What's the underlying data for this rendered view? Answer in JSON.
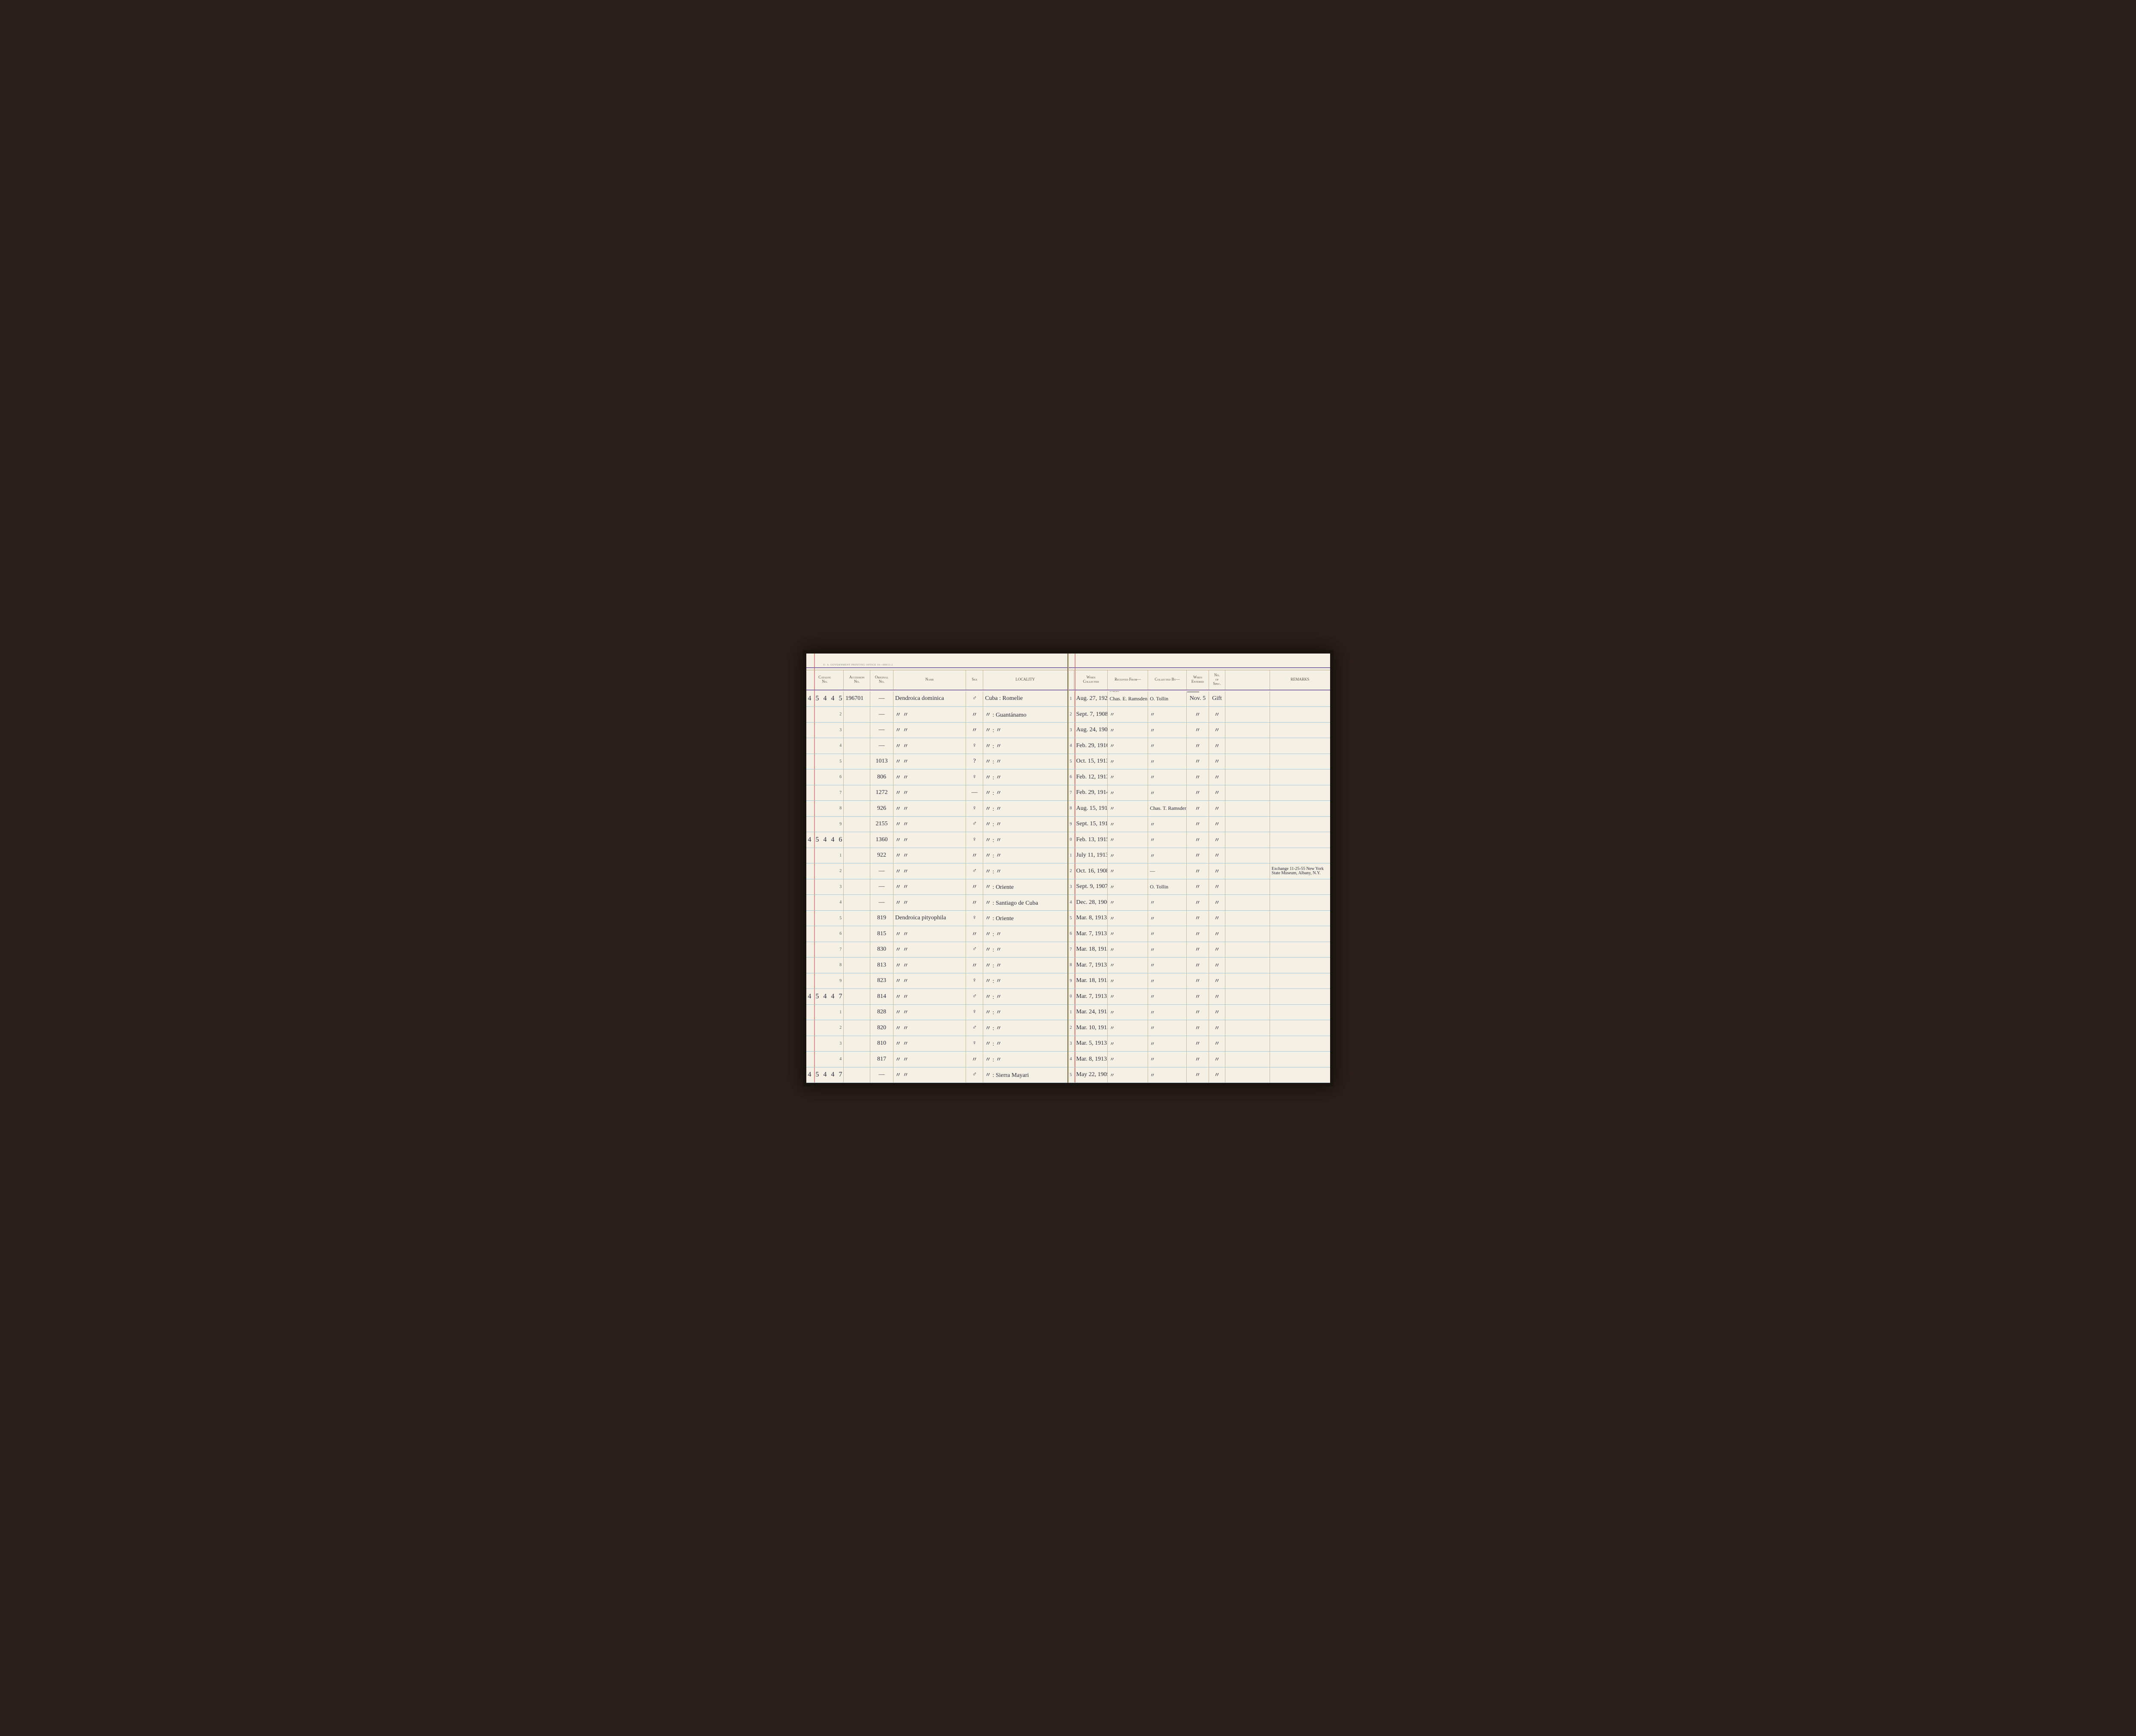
{
  "tiny_print": "U. S. GOVERNMENT PRINTING OFFICE   16—00913-2",
  "colors": {
    "paper": "#f5f0e4",
    "rule_horizontal": "#a8c8d8",
    "rule_vertical": "#c8b8a0",
    "margin": "#d89090",
    "purple_rule": "#8a6fa8",
    "ink": "#2a2a3a",
    "printed_text": "#5a4a3a"
  },
  "columns_left": [
    {
      "key": "catalog",
      "label": "Catalog\nNo.",
      "width": 88
    },
    {
      "key": "accession",
      "label": "Accession\nNo.",
      "width": 62
    },
    {
      "key": "original",
      "label": "Original\nNo.",
      "width": 54
    },
    {
      "key": "name",
      "label": "Name",
      "width": 170
    },
    {
      "key": "sex",
      "label": "Sex",
      "width": 40
    },
    {
      "key": "locality",
      "label": "LOCALITY",
      "width": 196
    }
  ],
  "columns_right": [
    {
      "key": "rownum",
      "label": "",
      "width": 14
    },
    {
      "key": "when_collected",
      "label": "When\nCollected",
      "width": 78
    },
    {
      "key": "received_from",
      "label": "Received From—",
      "width": 94
    },
    {
      "key": "collected_by",
      "label": "Collected By—",
      "width": 90
    },
    {
      "key": "when_entered",
      "label": "When\nEntered",
      "width": 52
    },
    {
      "key": "no_spec",
      "label": "No.\nof\nSpec.",
      "width": 38
    },
    {
      "key": "blank1",
      "label": "",
      "width": 104
    },
    {
      "key": "remarks",
      "label": "REMARKS",
      "width": 140
    }
  ],
  "above_header": {
    "received_from_year": "Mrs.",
    "when_entered_year": "1953"
  },
  "rows": [
    {
      "n": 1,
      "catalog": "4 5 4 4 5",
      "accession": "196701",
      "original": "—",
      "name": "Dendroica dominica",
      "sex": "♂",
      "locality": "Cuba :  Romelie",
      "when_collected": "Aug. 27, 1921",
      "received_from": "Chas. E. Ramsden",
      "collected_by": "O. Tollin",
      "when_entered": "Nov. 5",
      "no_spec": "Gift",
      "remarks": ""
    },
    {
      "n": 2,
      "catalog": "",
      "accession": "",
      "original": "—",
      "name": "〃          〃",
      "sex": "〃",
      "locality": "〃   : Guantánamo",
      "when_collected": "Sept. 7, 1908",
      "received_from": "〃",
      "collected_by": "〃",
      "when_entered": "〃",
      "no_spec": "〃",
      "remarks": ""
    },
    {
      "n": 3,
      "catalog": "",
      "accession": "",
      "original": "—",
      "name": "〃          〃",
      "sex": "〃",
      "locality": "〃   :     〃",
      "when_collected": "Aug. 24, 1908",
      "received_from": "〃",
      "collected_by": "〃",
      "when_entered": "〃",
      "no_spec": "〃",
      "remarks": ""
    },
    {
      "n": 4,
      "catalog": "",
      "accession": "",
      "original": "—",
      "name": "〃          〃",
      "sex": "♀",
      "locality": "〃   :     〃",
      "when_collected": "Feb. 29, 1916",
      "received_from": "〃",
      "collected_by": "〃",
      "when_entered": "〃",
      "no_spec": "〃",
      "remarks": ""
    },
    {
      "n": 5,
      "catalog": "",
      "accession": "",
      "original": "1013",
      "name": "〃          〃",
      "sex": "?",
      "locality": "〃   :     〃",
      "when_collected": "Oct. 15, 1913",
      "received_from": "〃",
      "collected_by": "〃",
      "when_entered": "〃",
      "no_spec": "〃",
      "remarks": ""
    },
    {
      "n": 6,
      "catalog": "",
      "accession": "",
      "original": "806",
      "name": "〃          〃",
      "sex": "♀",
      "locality": "〃   :     〃",
      "when_collected": "Feb. 12, 1913",
      "received_from": "〃",
      "collected_by": "〃",
      "when_entered": "〃",
      "no_spec": "〃",
      "remarks": ""
    },
    {
      "n": 7,
      "catalog": "",
      "accession": "",
      "original": "1272",
      "name": "〃          〃",
      "sex": "—",
      "locality": "〃   :     〃",
      "when_collected": "Feb. 29, 1914",
      "received_from": "〃",
      "collected_by": "〃",
      "when_entered": "〃",
      "no_spec": "〃",
      "remarks": ""
    },
    {
      "n": 8,
      "catalog": "",
      "accession": "",
      "original": "926",
      "name": "〃          〃",
      "sex": "♀",
      "locality": "〃   :     〃",
      "when_collected": "Aug. 15, 1913",
      "received_from": "〃",
      "collected_by": "Chas. T. Ramsden",
      "when_entered": "〃",
      "no_spec": "〃",
      "remarks": ""
    },
    {
      "n": 9,
      "catalog": "",
      "accession": "",
      "original": "2155",
      "name": "〃          〃",
      "sex": "♂",
      "locality": "〃   :     〃",
      "when_collected": "Sept. 15, 1917",
      "received_from": "〃",
      "collected_by": "〃",
      "when_entered": "〃",
      "no_spec": "〃",
      "remarks": ""
    },
    {
      "n": 0,
      "catalog": "4 5 4 4 6",
      "accession": "",
      "original": "1360",
      "name": "〃          〃",
      "sex": "♀",
      "locality": "〃   :     〃",
      "when_collected": "Feb. 13, 1915",
      "received_from": "〃",
      "collected_by": "〃",
      "when_entered": "〃",
      "no_spec": "〃",
      "remarks": ""
    },
    {
      "n": 1,
      "catalog": "",
      "accession": "",
      "original": "922",
      "name": "〃          〃",
      "sex": "〃",
      "locality": "〃   :     〃",
      "when_collected": "July 11, 1913",
      "received_from": "〃",
      "collected_by": "〃",
      "when_entered": "〃",
      "no_spec": "〃",
      "remarks": ""
    },
    {
      "n": 2,
      "catalog": "",
      "accession": "",
      "original": "—",
      "name": "〃          〃",
      "sex": "♂",
      "locality": "〃   :     〃",
      "when_collected": "Oct. 16, 1908",
      "received_from": "〃",
      "collected_by": "—",
      "when_entered": "〃",
      "no_spec": "〃",
      "remarks": "Exchange 11-25-55 New York State Museum, Albany, N.Y."
    },
    {
      "n": 3,
      "catalog": "",
      "accession": "",
      "original": "—",
      "name": "〃          〃",
      "sex": "〃",
      "locality": "〃   : Oriente",
      "when_collected": "Sept. 9, 1907",
      "received_from": "〃",
      "collected_by": "O. Tollin",
      "when_entered": "〃",
      "no_spec": "〃",
      "remarks": ""
    },
    {
      "n": 4,
      "catalog": "",
      "accession": "",
      "original": "—",
      "name": "〃          〃",
      "sex": "〃",
      "locality": "〃   : Santiago de Cuba",
      "when_collected": "Dec. 28, 1906",
      "received_from": "〃",
      "collected_by": "〃",
      "when_entered": "〃",
      "no_spec": "〃",
      "remarks": ""
    },
    {
      "n": 5,
      "catalog": "",
      "accession": "",
      "original": "819",
      "name": "Dendroica pityophila",
      "sex": "♀",
      "locality": "〃   : Oriente",
      "when_collected": "Mar. 8, 1913",
      "received_from": "〃",
      "collected_by": "〃",
      "when_entered": "〃",
      "no_spec": "〃",
      "remarks": ""
    },
    {
      "n": 6,
      "catalog": "",
      "accession": "",
      "original": "815",
      "name": "〃          〃",
      "sex": "〃",
      "locality": "〃   :     〃",
      "when_collected": "Mar. 7, 1913",
      "received_from": "〃",
      "collected_by": "〃",
      "when_entered": "〃",
      "no_spec": "〃",
      "remarks": ""
    },
    {
      "n": 7,
      "catalog": "",
      "accession": "",
      "original": "830",
      "name": "〃          〃",
      "sex": "♂",
      "locality": "〃   :     〃",
      "when_collected": "Mar. 18, 1913",
      "received_from": "〃",
      "collected_by": "〃",
      "when_entered": "〃",
      "no_spec": "〃",
      "remarks": ""
    },
    {
      "n": 8,
      "catalog": "",
      "accession": "",
      "original": "813",
      "name": "〃          〃",
      "sex": "〃",
      "locality": "〃   :     〃",
      "when_collected": "Mar. 7, 1913",
      "received_from": "〃",
      "collected_by": "〃",
      "when_entered": "〃",
      "no_spec": "〃",
      "remarks": ""
    },
    {
      "n": 9,
      "catalog": "",
      "accession": "",
      "original": "823",
      "name": "〃          〃",
      "sex": "♀",
      "locality": "〃   :     〃",
      "when_collected": "Mar. 18, 1913",
      "received_from": "〃",
      "collected_by": "〃",
      "when_entered": "〃",
      "no_spec": "〃",
      "remarks": ""
    },
    {
      "n": 0,
      "catalog": "4 5 4 4 7",
      "accession": "",
      "original": "814",
      "name": "〃          〃",
      "sex": "♂",
      "locality": "〃   :     〃",
      "when_collected": "Mar. 7, 1913",
      "received_from": "〃",
      "collected_by": "〃",
      "when_entered": "〃",
      "no_spec": "〃",
      "remarks": ""
    },
    {
      "n": 1,
      "catalog": "",
      "accession": "",
      "original": "828",
      "name": "〃          〃",
      "sex": "♀",
      "locality": "〃   :     〃",
      "when_collected": "Mar. 24, 1913",
      "received_from": "〃",
      "collected_by": "〃",
      "when_entered": "〃",
      "no_spec": "〃",
      "remarks": ""
    },
    {
      "n": 2,
      "catalog": "",
      "accession": "",
      "original": "820",
      "name": "〃          〃",
      "sex": "♂",
      "locality": "〃   :     〃",
      "when_collected": "Mar. 10, 1913",
      "received_from": "〃",
      "collected_by": "〃",
      "when_entered": "〃",
      "no_spec": "〃",
      "remarks": ""
    },
    {
      "n": 3,
      "catalog": "",
      "accession": "",
      "original": "810",
      "name": "〃          〃",
      "sex": "♀",
      "locality": "〃   :     〃",
      "when_collected": "Mar. 5, 1913",
      "received_from": "〃",
      "collected_by": "〃",
      "when_entered": "〃",
      "no_spec": "〃",
      "remarks": ""
    },
    {
      "n": 4,
      "catalog": "",
      "accession": "",
      "original": "817",
      "name": "〃          〃",
      "sex": "〃",
      "locality": "〃   :     〃",
      "when_collected": "Mar. 8, 1913",
      "received_from": "〃",
      "collected_by": "〃",
      "when_entered": "〃",
      "no_spec": "〃",
      "remarks": ""
    },
    {
      "n": 5,
      "catalog": "4 5 4 4 7",
      "accession": "",
      "original": "—",
      "name": "〃          〃",
      "sex": "♂",
      "locality": "〃   : Sierra Mayari",
      "when_collected": "May 22, 1909",
      "received_from": "〃",
      "collected_by": "〃",
      "when_entered": "〃",
      "no_spec": "〃",
      "remarks": ""
    }
  ]
}
